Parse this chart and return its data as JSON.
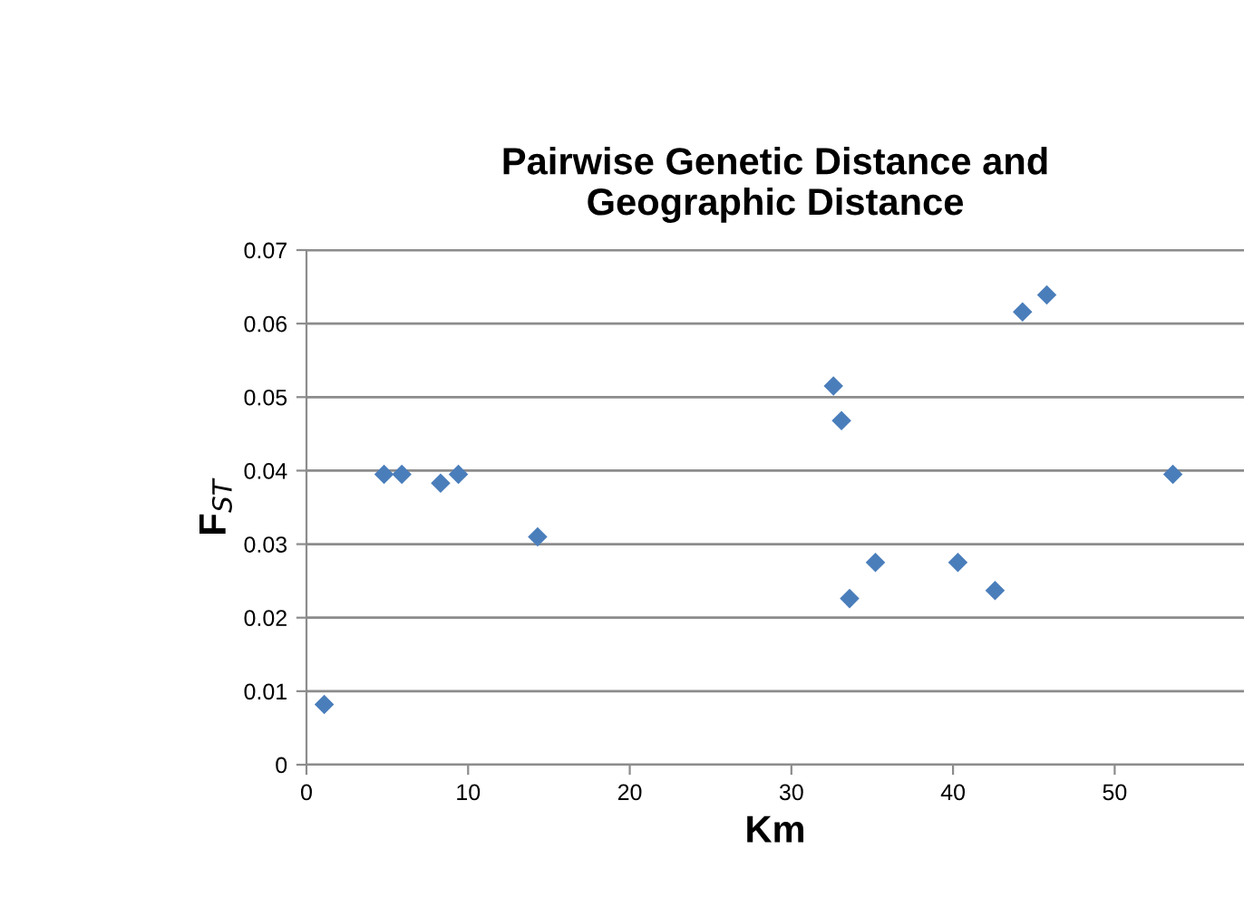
{
  "chart_data": {
    "type": "scatter",
    "title": "Pairwise Genetic Distance and\nGeographic Distance",
    "xlabel": "Km",
    "ylabel": "F$_{ST}$",
    "x": [
      1.1,
      4.8,
      5.9,
      8.3,
      9.4,
      14.3,
      32.6,
      33.1,
      33.6,
      35.2,
      40.3,
      42.6,
      44.3,
      45.8,
      53.6
    ],
    "values": [
      0.0082,
      0.0395,
      0.0395,
      0.0383,
      0.0395,
      0.031,
      0.0515,
      0.0468,
      0.0226,
      0.0275,
      0.0275,
      0.0237,
      0.0616,
      0.0639,
      0.0395
    ],
    "color": "#4a7ebb",
    "marker": "diamond",
    "grid": "y",
    "xlim": [
      0,
      58
    ],
    "xticks": [
      0,
      10,
      20,
      30,
      40,
      50
    ],
    "ylim": [
      0,
      0.07
    ],
    "yticks": [
      {
        "value": 0,
        "label": "0"
      },
      0.01,
      0.02,
      0.03,
      0.04,
      0.05,
      0.06,
      0.07
    ]
  }
}
